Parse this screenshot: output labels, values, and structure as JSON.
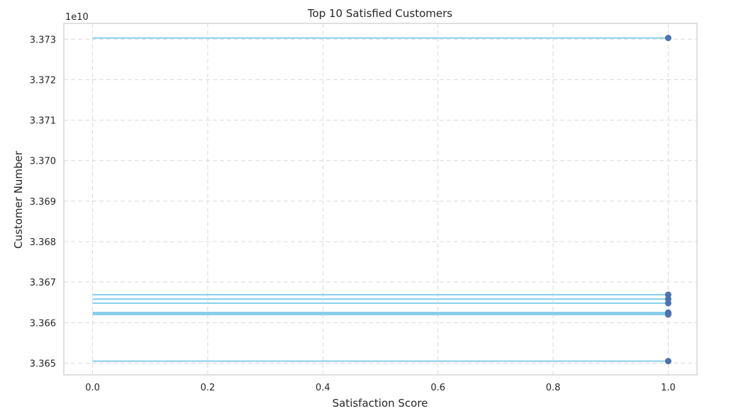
{
  "chart_data": {
    "type": "lollipop",
    "orientation": "horizontal",
    "title": "Top 10 Satisfied Customers",
    "xlabel": "Satisfaction Score",
    "ylabel": "Customer Number",
    "y_offset_label": "1e10",
    "y_scale": 10000000000,
    "xlim": [
      -0.05,
      1.05
    ],
    "ylim": [
      3.36471,
      3.37339
    ],
    "x_ticks": [
      0.0,
      0.2,
      0.4,
      0.6,
      0.8,
      1.0
    ],
    "x_tick_labels": [
      "0.0",
      "0.2",
      "0.4",
      "0.6",
      "0.8",
      "1.0"
    ],
    "y_ticks": [
      3.365,
      3.366,
      3.367,
      3.368,
      3.369,
      3.37,
      3.371,
      3.372,
      3.373
    ],
    "y_tick_labels": [
      "3.365",
      "3.366",
      "3.367",
      "3.368",
      "3.369",
      "3.370",
      "3.371",
      "3.372",
      "3.373"
    ],
    "grid": true,
    "stem_color": "#87CEEB",
    "marker_color": "#4C72B0",
    "points": [
      {
        "x": 1.0,
        "y": 3.37303
      },
      {
        "x": 1.0,
        "y": 3.36669
      },
      {
        "x": 1.0,
        "y": 3.36658
      },
      {
        "x": 1.0,
        "y": 3.36648
      },
      {
        "x": 1.0,
        "y": 3.36625
      },
      {
        "x": 1.0,
        "y": 3.36623
      },
      {
        "x": 1.0,
        "y": 3.36622
      },
      {
        "x": 1.0,
        "y": 3.36621
      },
      {
        "x": 1.0,
        "y": 3.3662
      },
      {
        "x": 1.0,
        "y": 3.36505
      }
    ]
  }
}
